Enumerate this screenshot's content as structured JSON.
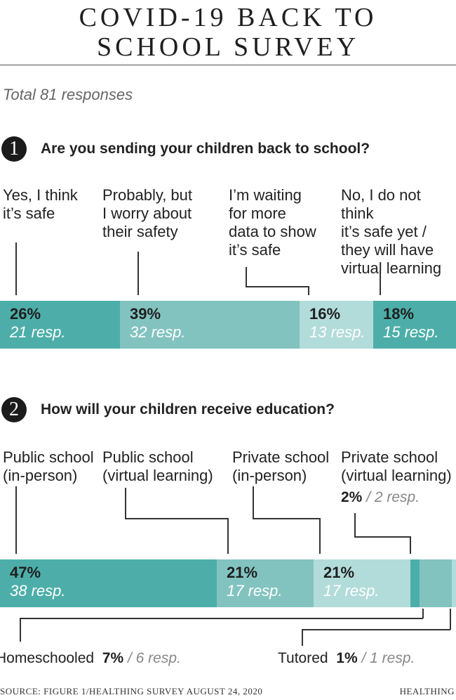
{
  "title_line1": "COVID-19 BACK TO",
  "title_line2": "SCHOOL SURVEY",
  "subtitle": "Total 81 responses",
  "footer": {
    "source": "SOURCE: FIGURE 1/HEALTHING SURVEY AUGUST 24, 2020",
    "brand": "HEALTHING"
  },
  "colors": {
    "teal_dark": "#4daea9",
    "teal_mid": "#82c3c0",
    "teal_light": "#b2dcda"
  },
  "chart_data": [
    {
      "type": "bar",
      "orientation": "horizontal-stacked",
      "question_number": "1",
      "title": "Are you sending your children back to school?",
      "categories": [
        "Yes, I think it’s safe",
        "Probably, but I worry about their safety",
        "I’m waiting for more data to show it’s safe",
        "No, I do not think it’s safe yet / they will have virtual learning"
      ],
      "labels": [
        "Yes, I think\nit’s safe",
        "Probably, but\nI worry about\ntheir safety",
        "I’m waiting\nfor more\ndata to show\nit’s safe",
        "No, I do not think\nit’s safe yet /\nthey will have\nvirtual learning"
      ],
      "values": [
        26,
        39,
        16,
        18
      ],
      "percent_labels": [
        "26%",
        "39%",
        "16%",
        "18%"
      ],
      "responses": [
        21,
        32,
        13,
        15
      ],
      "response_labels": [
        "21 resp.",
        "32 resp.",
        "13 resp.",
        "15 resp."
      ],
      "colors": [
        "#4daea9",
        "#82c3c0",
        "#b2dcda",
        "#4daea9"
      ]
    },
    {
      "type": "bar",
      "orientation": "horizontal-stacked",
      "question_number": "2",
      "title": "How will your children receive education?",
      "categories": [
        "Public school (in-person)",
        "Public school (virtual learning)",
        "Private school (in-person)",
        "Private school (virtual learning)",
        "Homeschooled",
        "Tutored"
      ],
      "labels": [
        "Public school\n(in-person)",
        "Public school\n(virtual learning)",
        "Private school\n(in-person)",
        "Private school\n(virtual learning)",
        "Homeschooled",
        "Tutored"
      ],
      "values": [
        47,
        21,
        21,
        2,
        7,
        1
      ],
      "percent_labels": [
        "47%",
        "21%",
        "21%",
        "2%",
        "7%",
        "1%"
      ],
      "responses": [
        38,
        17,
        17,
        2,
        6,
        1
      ],
      "response_labels": [
        "38 resp.",
        "17 resp.",
        "17 resp.",
        "2 resp.",
        "6 resp.",
        "1 resp."
      ],
      "colors": [
        "#4daea9",
        "#82c3c0",
        "#b2dcda",
        "#4daea9",
        "#82c3c0",
        "#b2dcda"
      ]
    }
  ]
}
